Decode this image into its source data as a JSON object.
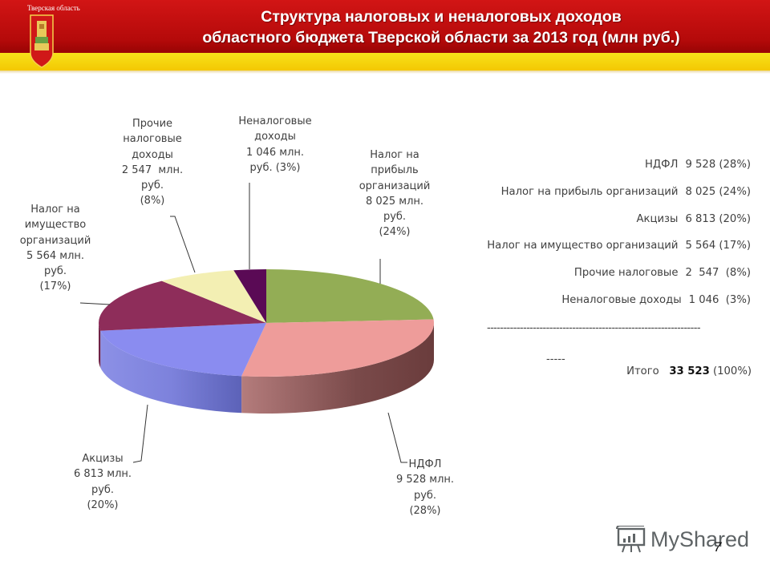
{
  "header": {
    "region_label": "Тверская область",
    "title_line1": "Структура налоговых и неналоговых доходов",
    "title_line2": "областного бюджета Тверской области за 2013 год (млн руб.)"
  },
  "chart_data": {
    "type": "pie",
    "style": "3d",
    "title": "Структура налоговых и неналоговых доходов областного бюджета Тверской области за 2013 год (млн руб.)",
    "unit": "млн руб.",
    "categories": [
      "Налог на прибыль организаций",
      "НДФЛ",
      "Акцизы",
      "Налог на имущество организаций",
      "Прочие налоговые доходы",
      "Неналоговые доходы"
    ],
    "values": [
      8025,
      9528,
      6813,
      5564,
      2547,
      1046
    ],
    "percents": [
      24,
      28,
      20,
      17,
      8,
      3
    ],
    "colors": [
      "#93ad55",
      "#ee9c9a",
      "#8a8cf0",
      "#8e2d5a",
      "#f3efb3",
      "#5a0a55"
    ],
    "total": 33523,
    "data_labels": [
      "Налог на\nприбыль\nорганизаций\n8 025 млн.\nруб.\n(24%)",
      "НДФЛ\n9 528 млн.\nруб.\n(28%)",
      "Акцизы\n6 813 млн.\nруб.\n(20%)",
      "Налог на\nимущество\nорганизаций\n5 564 млн.\nруб.\n(17%)",
      "Прочие\nналоговые\nдоходы\n2 547  млн.\nруб.\n(8%)",
      "Неналоговые\nдоходы\n1 046 млн.\nруб. (3%)"
    ],
    "legend_position": "right"
  },
  "legend": {
    "rows": [
      {
        "name": "НДФЛ",
        "value": "9 528 (28%)"
      },
      {
        "name": "Налог на прибыль организаций",
        "value": "8 025 (24%)"
      },
      {
        "name": "Акцизы",
        "value": "6 813 (20%)"
      },
      {
        "name": "Налог на имущество организаций",
        "value": "5 564 (17%)"
      },
      {
        "name": "Прочие налоговые",
        "value": "2  547  (8%)"
      },
      {
        "name": "Неналоговые доходы",
        "value": "1 046  (3%)"
      }
    ],
    "separator": "-----------------------------------------------------------------",
    "short_dash": "-----",
    "total_label": "Итого",
    "total_value": "33 523",
    "total_percent": "(100%)"
  },
  "footer": {
    "watermark": "MyShared",
    "page_number": "7"
  }
}
